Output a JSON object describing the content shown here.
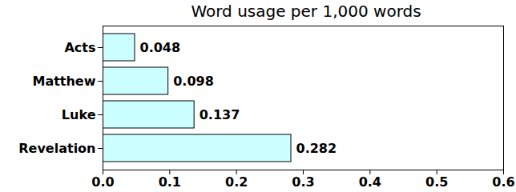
{
  "chart_data": {
    "type": "bar",
    "title": "Word usage per 1,000 words",
    "orientation": "horizontal",
    "categories": [
      "Acts",
      "Matthew",
      "Luke",
      "Revelation"
    ],
    "values": [
      0.048,
      0.098,
      0.137,
      0.282
    ],
    "color": "#ccffff",
    "xlim": [
      0,
      0.6
    ],
    "xticks": [
      {
        "value": 0,
        "label": "0.0"
      },
      0.1,
      0.2,
      0.3,
      0.4,
      0.5,
      0.6
    ],
    "data_labels": true,
    "grid": false
  }
}
